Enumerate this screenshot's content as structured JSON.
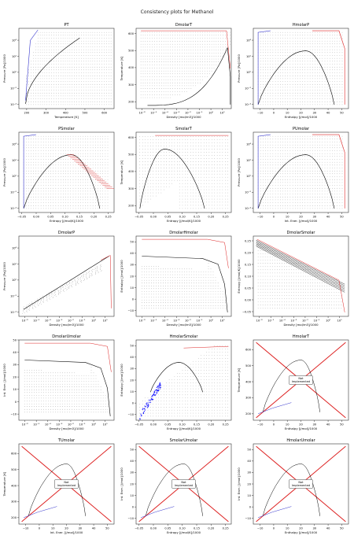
{
  "figure_title": "Consistency plots for Methanol",
  "not_implemented_label": "Not\nImplemented",
  "colors": {
    "grid_dots": "#555555",
    "phase_envelope": "#000000",
    "liquid_edge": "#3333cc",
    "vapor_edge": "#dd2222",
    "marker_blue": "#1a1aff",
    "axis": "#333333"
  },
  "chart_data": [
    {
      "title": "PT",
      "type": "scatter",
      "xlabel": "Temperature [K]",
      "ylabel": "Pressure [Pa]/1000",
      "xscale": "linear",
      "yscale": "log",
      "xlim": [
        160,
        650
      ],
      "ylim": [
        3e-05,
        300000
      ],
      "xticks": [
        200,
        300,
        400,
        500,
        600
      ],
      "xticklabels": [
        "200",
        "300",
        "400",
        "500",
        "600"
      ],
      "yticks": [
        0.0001,
        0.01,
        1,
        100,
        10000
      ],
      "yticklabels": [
        "10⁻⁴",
        "10⁻²",
        "10⁰",
        "10²",
        "10⁴"
      ],
      "pattern": "pt"
    },
    {
      "title": "DmolarT",
      "type": "scatter",
      "xlabel": "Density [mol/m3]/1000",
      "ylabel": "Temperature [K]",
      "xscale": "log",
      "yscale": "linear",
      "xlim": [
        3e-07,
        60
      ],
      "ylim": [
        160,
        630
      ],
      "xticks": [
        1e-06,
        1e-05,
        0.0001,
        0.001,
        0.01,
        0.1,
        1,
        10
      ],
      "xticklabels": [
        "10⁻⁶",
        "10⁻⁵",
        "10⁻⁴",
        "10⁻³",
        "10⁻²",
        "10⁻¹",
        "10⁰",
        "10¹"
      ],
      "yticks": [
        200,
        300,
        400,
        500,
        600
      ],
      "yticklabels": [
        "200",
        "300",
        "400",
        "500",
        "600"
      ],
      "pattern": "dt"
    },
    {
      "title": "HmolarP",
      "type": "scatter",
      "xlabel": "Enthalpy [J/mol]/1000",
      "ylabel": "Pressure [Pa]/1000",
      "xscale": "linear",
      "yscale": "log",
      "xlim": [
        -15,
        55
      ],
      "ylim": [
        3e-05,
        300000
      ],
      "xticks": [
        -10,
        0,
        10,
        20,
        30,
        40,
        50
      ],
      "xticklabels": [
        "−10",
        "0",
        "10",
        "20",
        "30",
        "40",
        "50"
      ],
      "yticks": [
        0.0001,
        0.01,
        1,
        100,
        10000
      ],
      "yticklabels": [
        "10⁻⁴",
        "10⁻²",
        "10⁰",
        "10²",
        "10⁴"
      ],
      "pattern": "hp"
    },
    {
      "title": "PSmolar",
      "type": "scatter",
      "xlabel": "Entropy [J/mol/K]/1000",
      "ylabel": "Pressure [Pa]/1000",
      "xscale": "linear",
      "yscale": "log",
      "xlim": [
        -0.06,
        0.27
      ],
      "ylim": [
        3e-05,
        300000
      ],
      "xticks": [
        -0.05,
        0.0,
        0.05,
        0.1,
        0.15,
        0.2,
        0.25
      ],
      "xticklabels": [
        "−0.05",
        "0.00",
        "0.05",
        "0.10",
        "0.15",
        "0.20",
        "0.25"
      ],
      "yticks": [
        0.0001,
        0.01,
        1,
        100,
        10000
      ],
      "yticklabels": [
        "10⁻⁴",
        "10⁻²",
        "10⁰",
        "10²",
        "10⁴"
      ],
      "pattern": "sp"
    },
    {
      "title": "SmolarT",
      "type": "scatter",
      "xlabel": "Entropy [J/mol/K]/1000",
      "ylabel": "Temperature [K]",
      "xscale": "linear",
      "yscale": "linear",
      "xlim": [
        -0.06,
        0.27
      ],
      "ylim": [
        160,
        630
      ],
      "xticks": [
        -0.05,
        0.0,
        0.05,
        0.1,
        0.15,
        0.2,
        0.25
      ],
      "xticklabels": [
        "−0.05",
        "0.00",
        "0.05",
        "0.10",
        "0.15",
        "0.20",
        "0.25"
      ],
      "yticks": [
        200,
        300,
        400,
        500,
        600
      ],
      "yticklabels": [
        "200",
        "300",
        "400",
        "500",
        "600"
      ],
      "pattern": "st"
    },
    {
      "title": "PUmolar",
      "type": "scatter",
      "xlabel": "Int. Ener. [J/mol]/1000",
      "ylabel": "Pressure [Pa]/1000",
      "xscale": "linear",
      "yscale": "log",
      "xlim": [
        -15,
        55
      ],
      "ylim": [
        3e-05,
        300000
      ],
      "xticks": [
        -10,
        0,
        10,
        20,
        30,
        40,
        50
      ],
      "xticklabels": [
        "−10",
        "0",
        "10",
        "20",
        "30",
        "40",
        "50"
      ],
      "yticks": [
        0.0001,
        0.01,
        1,
        100,
        10000
      ],
      "yticklabels": [
        "10⁻⁴",
        "10⁻²",
        "10⁰",
        "10²",
        "10⁴"
      ],
      "pattern": "hp"
    },
    {
      "title": "DmolarP",
      "type": "scatter",
      "xlabel": "Density [mol/m3]/1000",
      "ylabel": "Pressure [Pa]/1000",
      "xscale": "log",
      "yscale": "log",
      "xlim": [
        3e-07,
        60
      ],
      "ylim": [
        3e-05,
        300000
      ],
      "xticks": [
        1e-06,
        1e-05,
        0.0001,
        0.001,
        0.01,
        0.1,
        1,
        10
      ],
      "xticklabels": [
        "10⁻⁶",
        "10⁻⁵",
        "10⁻⁴",
        "10⁻³",
        "10⁻²",
        "10⁻¹",
        "10⁰",
        "10¹"
      ],
      "yticks": [
        0.0001,
        0.01,
        1,
        100,
        10000
      ],
      "yticklabels": [
        "10⁻⁴",
        "10⁻²",
        "10⁰",
        "10²",
        "10⁴"
      ],
      "pattern": "dp"
    },
    {
      "title": "DmolarHmolar",
      "type": "scatter",
      "xlabel": "Density [mol/m3]/1000",
      "ylabel": "Enthalpy [J/mol]/1000",
      "xscale": "log",
      "yscale": "linear",
      "xlim": [
        3e-07,
        60
      ],
      "ylim": [
        -15,
        55
      ],
      "xticks": [
        1e-06,
        1e-05,
        0.0001,
        0.001,
        0.01,
        0.1,
        1,
        10
      ],
      "xticklabels": [
        "10⁻⁶",
        "10⁻⁵",
        "10⁻⁴",
        "10⁻³",
        "10⁻²",
        "10⁻¹",
        "10⁰",
        "10¹"
      ],
      "yticks": [
        -10,
        0,
        10,
        20,
        30,
        40,
        50
      ],
      "yticklabels": [
        "−10",
        "0",
        "10",
        "20",
        "30",
        "40",
        "50"
      ],
      "pattern": "dh"
    },
    {
      "title": "DmolarSmolar",
      "type": "scatter",
      "xlabel": "Density [mol/m3]/1000",
      "ylabel": "Entropy [J/mol/K]/1000",
      "xscale": "log",
      "yscale": "linear",
      "xlim": [
        3e-07,
        60
      ],
      "ylim": [
        -0.07,
        0.27
      ],
      "xticks": [
        1e-06,
        1e-05,
        0.0001,
        0.001,
        0.01,
        0.1,
        1,
        10
      ],
      "xticklabels": [
        "10⁻⁶",
        "10⁻⁵",
        "10⁻⁴",
        "10⁻³",
        "10⁻²",
        "10⁻¹",
        "10⁰",
        "10¹"
      ],
      "yticks": [
        -0.05,
        0.0,
        0.05,
        0.1,
        0.15,
        0.2,
        0.25
      ],
      "yticklabels": [
        "−0.05",
        "0.00",
        "0.05",
        "0.10",
        "0.15",
        "0.20",
        "0.25"
      ],
      "pattern": "ds"
    },
    {
      "title": "DmolarUmolar",
      "type": "scatter",
      "xlabel": "Density [mol/m3]/1000",
      "ylabel": "Int. Ener. [J/mol]/1000",
      "xscale": "log",
      "yscale": "linear",
      "xlim": [
        3e-07,
        60
      ],
      "ylim": [
        -15,
        50
      ],
      "xticks": [
        1e-06,
        1e-05,
        0.0001,
        0.001,
        0.01,
        0.1,
        1,
        10
      ],
      "xticklabels": [
        "10⁻⁶",
        "10⁻⁵",
        "10⁻⁴",
        "10⁻³",
        "10⁻²",
        "10⁻¹",
        "10⁰",
        "10¹"
      ],
      "yticks": [
        -10,
        0,
        10,
        20,
        30,
        40,
        50
      ],
      "yticklabels": [
        "−10",
        "0",
        "10",
        "20",
        "30",
        "40",
        "50"
      ],
      "pattern": "dh"
    },
    {
      "title": "HmolarSmolar",
      "type": "scatter",
      "xlabel": "Entropy [J/mol/K]/1000",
      "ylabel": "Enthalpy [J/mol]/1000",
      "xscale": "linear",
      "yscale": "linear",
      "xlim": [
        -0.06,
        0.27
      ],
      "ylim": [
        -15,
        55
      ],
      "xticks": [
        -0.05,
        0.0,
        0.05,
        0.1,
        0.15,
        0.2,
        0.25
      ],
      "xticklabels": [
        "−0.05",
        "0.00",
        "0.05",
        "0.10",
        "0.15",
        "0.20",
        "0.25"
      ],
      "yticks": [
        -10,
        0,
        10,
        20,
        30,
        40,
        50
      ],
      "yticklabels": [
        "−10",
        "0",
        "10",
        "20",
        "30",
        "40",
        "50"
      ],
      "pattern": "sh"
    },
    {
      "title": "HmolarT",
      "type": "line",
      "xlabel": "Enthalpy [J/mol]/1000",
      "ylabel": "Temperature [K]",
      "xscale": "linear",
      "yscale": "linear",
      "xlim": [
        -15,
        55
      ],
      "ylim": [
        160,
        660
      ],
      "xticks": [
        -10,
        0,
        10,
        20,
        30,
        40,
        50
      ],
      "xticklabels": [
        "−10",
        "0",
        "10",
        "20",
        "30",
        "40",
        "50"
      ],
      "yticks": [
        200,
        300,
        400,
        500,
        600
      ],
      "yticklabels": [
        "200",
        "300",
        "400",
        "500",
        "600"
      ],
      "pattern": "ni"
    },
    {
      "title": "TUmolar",
      "type": "line",
      "xlabel": "Int. Ener. [J/mol]/1000",
      "ylabel": "Temperature [K]",
      "xscale": "linear",
      "yscale": "linear",
      "xlim": [
        -15,
        55
      ],
      "ylim": [
        160,
        660
      ],
      "xticks": [
        -10,
        0,
        10,
        20,
        30,
        40,
        50
      ],
      "xticklabels": [
        "−10",
        "0",
        "10",
        "20",
        "30",
        "40",
        "50"
      ],
      "yticks": [
        200,
        300,
        400,
        500,
        600
      ],
      "yticklabels": [
        "200",
        "300",
        "400",
        "500",
        "600"
      ],
      "pattern": "ni"
    },
    {
      "title": "SmolarUmolar",
      "type": "line",
      "xlabel": "Entropy [J/mol/K]/1000",
      "ylabel": "Int. Ener. [J/mol]/1000",
      "xscale": "linear",
      "yscale": "linear",
      "xlim": [
        -0.06,
        0.27
      ],
      "ylim": [
        -15,
        55
      ],
      "xticks": [
        -0.05,
        0.0,
        0.05,
        0.1,
        0.15,
        0.2,
        0.25
      ],
      "xticklabels": [
        "−0.05",
        "0.00",
        "0.05",
        "0.10",
        "0.15",
        "0.20",
        "0.25"
      ],
      "yticks": [
        -10,
        0,
        10,
        20,
        30,
        40,
        50
      ],
      "yticklabels": [
        "−10",
        "0",
        "10",
        "20",
        "30",
        "40",
        "50"
      ],
      "pattern": "ni"
    },
    {
      "title": "HmolarUmolar",
      "type": "line",
      "xlabel": "Enthalpy [J/mol]/1000",
      "ylabel": "Int. Ener. [J/mol]/1000",
      "xscale": "linear",
      "yscale": "linear",
      "xlim": [
        -15,
        55
      ],
      "ylim": [
        -15,
        55
      ],
      "xticks": [
        -10,
        0,
        10,
        20,
        30,
        40,
        50
      ],
      "xticklabels": [
        "−10",
        "0",
        "10",
        "20",
        "30",
        "40",
        "50"
      ],
      "yticks": [
        -10,
        0,
        10,
        20,
        30,
        40,
        50
      ],
      "yticklabels": [
        "−10",
        "0",
        "10",
        "20",
        "30",
        "40",
        "50"
      ],
      "pattern": "ni"
    }
  ]
}
